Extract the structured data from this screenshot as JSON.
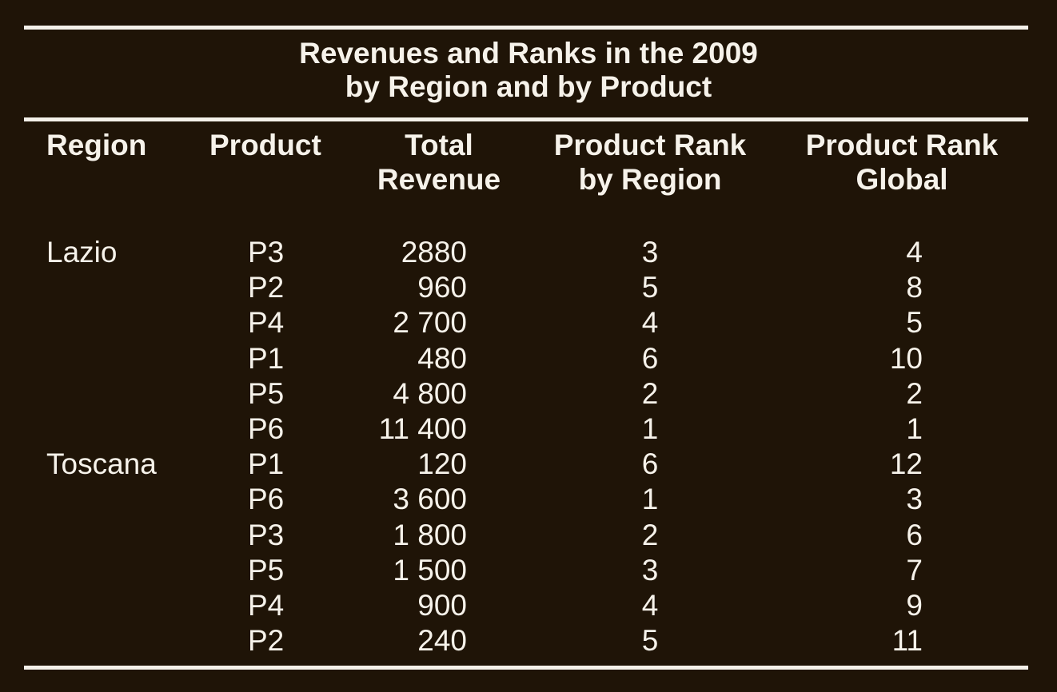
{
  "caption": {
    "line1": "Revenues and Ranks in the 2009",
    "line2": "by Region and by Product"
  },
  "headers": {
    "region": "Region",
    "product": "Product",
    "total_revenue": [
      "Total",
      "Revenue"
    ],
    "rank_by_region": [
      "Product Rank",
      "by Region"
    ],
    "rank_global": [
      "Product Rank",
      "Global"
    ]
  },
  "rows": [
    {
      "region": "Lazio",
      "product": "P3",
      "revenue": "2880",
      "rank_region": "3",
      "rank_global": "4"
    },
    {
      "region": "",
      "product": "P2",
      "revenue": "960",
      "rank_region": "5",
      "rank_global": "8"
    },
    {
      "region": "",
      "product": "P4",
      "revenue": "2 700",
      "rank_region": "4",
      "rank_global": "5"
    },
    {
      "region": "",
      "product": "P1",
      "revenue": "480",
      "rank_region": "6",
      "rank_global": "10"
    },
    {
      "region": "",
      "product": "P5",
      "revenue": "4 800",
      "rank_region": "2",
      "rank_global": "2"
    },
    {
      "region": "",
      "product": "P6",
      "revenue": "11 400",
      "rank_region": "1",
      "rank_global": "1"
    },
    {
      "region": "Toscana",
      "product": "P1",
      "revenue": "120",
      "rank_region": "6",
      "rank_global": "12"
    },
    {
      "region": "",
      "product": "P6",
      "revenue": "3 600",
      "rank_region": "1",
      "rank_global": "3"
    },
    {
      "region": "",
      "product": "P3",
      "revenue": "1 800",
      "rank_region": "2",
      "rank_global": "6"
    },
    {
      "region": "",
      "product": "P5",
      "revenue": "1 500",
      "rank_region": "3",
      "rank_global": "7"
    },
    {
      "region": "",
      "product": "P4",
      "revenue": "900",
      "rank_region": "4",
      "rank_global": "9"
    },
    {
      "region": "",
      "product": "P2",
      "revenue": "240",
      "rank_region": "5",
      "rank_global": "11"
    }
  ]
}
